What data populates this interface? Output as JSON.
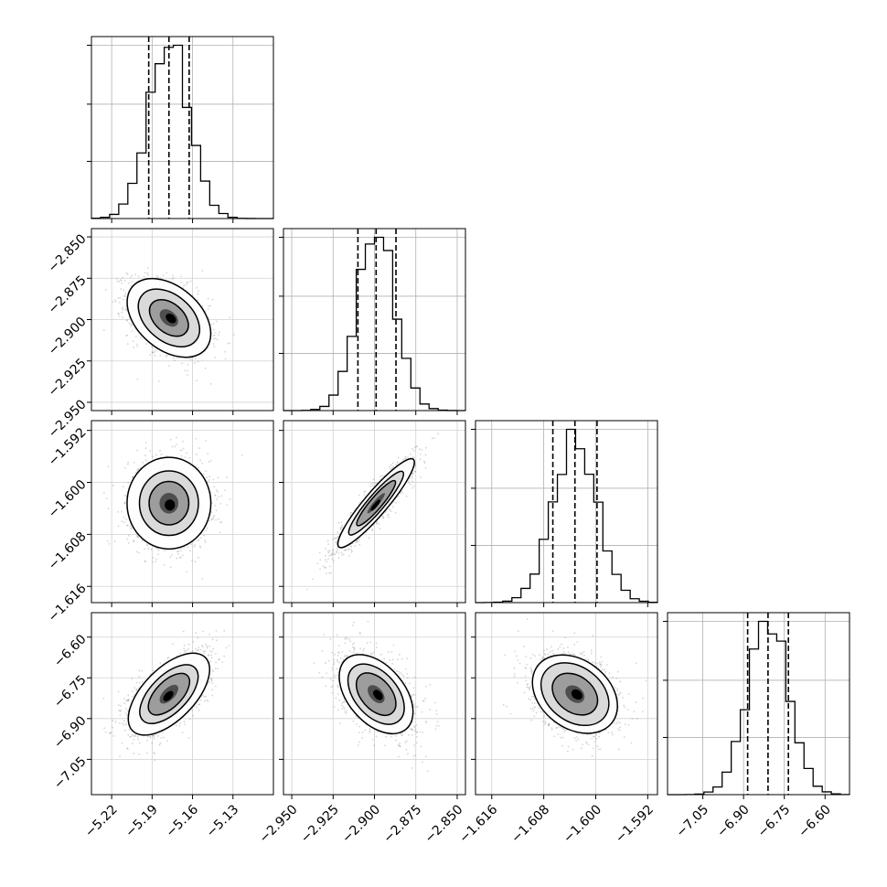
{
  "chart_data": {
    "type": "corner",
    "grid": true,
    "parameters": [
      {
        "range": [
          -5.235,
          -5.1
        ],
        "ticks": [
          -5.22,
          -5.19,
          -5.16,
          -5.13
        ],
        "tick_labels": [
          "−5.22",
          "−5.19",
          "−5.16",
          "−5.13"
        ],
        "quantiles": [
          -5.1925,
          -5.1775,
          -5.1625
        ],
        "mean": -5.1775,
        "sd": 0.015
      },
      {
        "range": [
          -2.955,
          -2.845
        ],
        "ticks": [
          -2.95,
          -2.925,
          -2.9,
          -2.875,
          -2.85
        ],
        "tick_labels": [
          "−2.950",
          "−2.925",
          "−2.900",
          "−2.875",
          "−2.850"
        ],
        "quantiles": [
          -2.91,
          -2.899,
          -2.887
        ],
        "mean": -2.899,
        "sd": 0.0115
      },
      {
        "range": [
          -1.6185,
          -1.5905
        ],
        "ticks": [
          -1.616,
          -1.608,
          -1.6,
          -1.592
        ],
        "tick_labels": [
          "−1.616",
          "−1.608",
          "−1.600",
          "−1.592"
        ],
        "quantiles": [
          -1.6066,
          -1.6032,
          -1.5998
        ],
        "mean": -1.6032,
        "sd": 0.0034
      },
      {
        "range": [
          -7.18,
          -6.51
        ],
        "ticks": [
          -7.05,
          -6.9,
          -6.75,
          -6.6
        ],
        "tick_labels": [
          "−7.05",
          "−6.90",
          "−6.75",
          "−6.60"
        ],
        "quantiles": [
          -6.885,
          -6.81,
          -6.735
        ],
        "mean": -6.81,
        "sd": 0.075
      }
    ],
    "correlations": [
      [
        1.0,
        -0.4,
        0.0,
        0.6
      ],
      [
        -0.4,
        1.0,
        0.92,
        -0.45
      ],
      [
        0.0,
        0.92,
        1.0,
        -0.3
      ],
      [
        0.6,
        -0.45,
        -0.3,
        1.0
      ]
    ],
    "histogram_color": "#000000",
    "sample_color": "#888888",
    "contour_color": "#000000"
  }
}
